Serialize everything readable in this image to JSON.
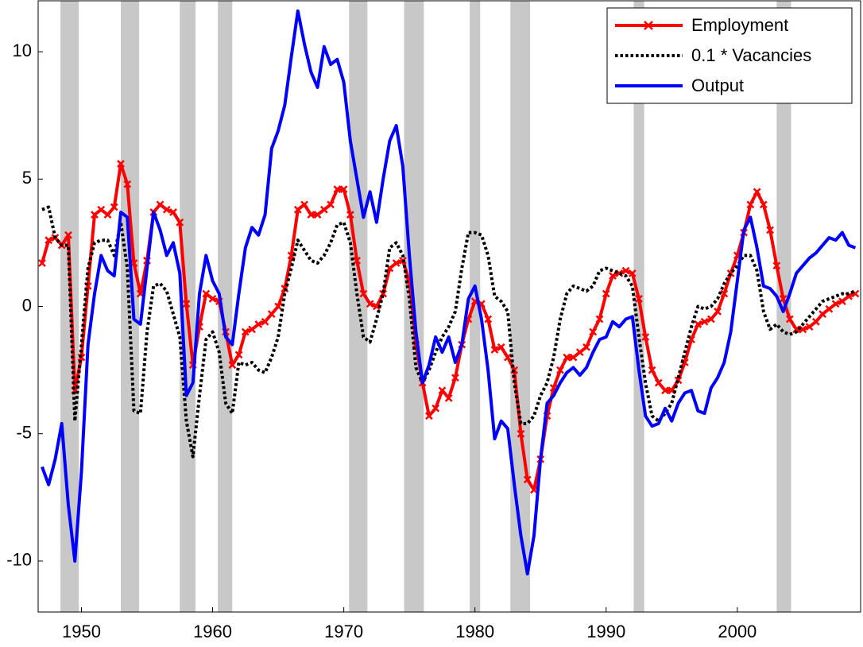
{
  "chart_data": {
    "type": "line",
    "x": [
      1947.0,
      1947.5,
      1948.0,
      1948.5,
      1949.0,
      1949.5,
      1950.0,
      1950.5,
      1951.0,
      1951.5,
      1952.0,
      1952.5,
      1953.0,
      1953.5,
      1954.0,
      1954.5,
      1955.0,
      1955.5,
      1956.0,
      1956.5,
      1957.0,
      1957.5,
      1958.0,
      1958.5,
      1959.0,
      1959.5,
      1960.0,
      1960.5,
      1961.0,
      1961.5,
      1962.0,
      1962.5,
      1963.0,
      1963.5,
      1964.0,
      1964.5,
      1965.0,
      1965.5,
      1966.0,
      1966.5,
      1967.0,
      1967.5,
      1968.0,
      1968.5,
      1969.0,
      1969.5,
      1970.0,
      1970.5,
      1971.0,
      1971.5,
      1972.0,
      1972.5,
      1973.0,
      1973.5,
      1974.0,
      1974.5,
      1975.0,
      1975.5,
      1976.0,
      1976.5,
      1977.0,
      1977.5,
      1978.0,
      1978.5,
      1979.0,
      1979.5,
      1980.0,
      1980.5,
      1981.0,
      1981.5,
      1982.0,
      1982.5,
      1983.0,
      1983.5,
      1984.0,
      1984.5,
      1985.0,
      1985.5,
      1986.0,
      1986.5,
      1987.0,
      1987.5,
      1988.0,
      1988.5,
      1989.0,
      1989.5,
      1990.0,
      1990.5,
      1991.0,
      1991.5,
      1992.0,
      1992.5,
      1993.0,
      1993.5,
      1994.0,
      1994.5,
      1995.0,
      1995.5,
      1996.0,
      1996.5,
      1997.0,
      1997.5,
      1998.0,
      1998.5,
      1999.0,
      1999.5,
      2000.0,
      2000.5,
      2001.0,
      2001.5,
      2002.0,
      2002.5,
      2003.0,
      2003.5,
      2004.0,
      2004.5,
      2005.0,
      2005.5,
      2006.0,
      2006.5,
      2007.0,
      2007.5,
      2008.0,
      2008.5,
      2009.0
    ],
    "series": [
      {
        "name": "Employment",
        "color": "#ff0000",
        "marker": "x",
        "dash": "solid",
        "values": [
          1.7,
          2.6,
          2.7,
          2.4,
          2.8,
          -3.3,
          -2.0,
          0.8,
          3.6,
          3.8,
          3.6,
          3.9,
          5.6,
          4.8,
          1.7,
          0.5,
          1.8,
          3.7,
          4.0,
          3.8,
          3.7,
          3.3,
          0.1,
          -2.3,
          -0.8,
          0.5,
          0.3,
          0.2,
          -1.0,
          -2.3,
          -1.9,
          -1.0,
          -0.9,
          -0.7,
          -0.6,
          -0.3,
          0.0,
          0.7,
          2.0,
          3.8,
          4.0,
          3.6,
          3.6,
          3.8,
          4.0,
          4.6,
          4.6,
          3.6,
          1.8,
          0.5,
          0.1,
          0.0,
          0.5,
          1.5,
          1.7,
          1.8,
          1.0,
          -1.5,
          -3.0,
          -4.3,
          -4.0,
          -3.3,
          -3.6,
          -2.8,
          -1.5,
          -0.5,
          0.2,
          0.1,
          -0.5,
          -1.7,
          -1.6,
          -2.0,
          -2.5,
          -5.0,
          -6.8,
          -7.2,
          -6.0,
          -4.3,
          -3.2,
          -2.5,
          -2.0,
          -2.0,
          -1.8,
          -1.6,
          -1.0,
          -0.5,
          0.5,
          1.2,
          1.3,
          1.4,
          1.3,
          0.3,
          -1.2,
          -2.5,
          -3.0,
          -3.3,
          -3.3,
          -2.9,
          -2.2,
          -1.3,
          -0.7,
          -0.6,
          -0.5,
          -0.2,
          0.5,
          1.3,
          2.0,
          2.9,
          4.0,
          4.5,
          4.0,
          3.0,
          1.6,
          0.3,
          -0.5,
          -0.9,
          -0.9,
          -0.8,
          -0.6,
          -0.3,
          -0.1,
          0.1,
          0.2,
          0.4,
          0.5
        ]
      },
      {
        "name": "0.1 * Vacancies",
        "color": "#000000",
        "marker": "none",
        "dash": "dotted",
        "values": [
          3.8,
          3.9,
          2.7,
          2.4,
          2.4,
          -4.5,
          -1.5,
          1.5,
          2.5,
          2.6,
          2.6,
          2.0,
          3.3,
          1.5,
          -4.1,
          -4.2,
          -1.0,
          0.8,
          0.9,
          0.6,
          -0.3,
          -1.2,
          -4.5,
          -5.9,
          -3.5,
          -1.3,
          -1.0,
          -1.8,
          -3.8,
          -4.2,
          -2.2,
          -2.3,
          -2.2,
          -2.5,
          -2.6,
          -2.0,
          -1.2,
          0.5,
          1.5,
          2.6,
          2.2,
          1.8,
          1.7,
          2.0,
          2.5,
          3.2,
          3.3,
          2.5,
          0.5,
          -1.2,
          -1.4,
          -0.5,
          0.5,
          2.3,
          2.5,
          2.0,
          0.3,
          -2.4,
          -3.0,
          -2.5,
          -1.8,
          -1.2,
          -0.8,
          -0.2,
          1.5,
          2.9,
          2.9,
          2.8,
          2.0,
          0.4,
          0.2,
          -0.2,
          -3.0,
          -4.6,
          -4.6,
          -4.3,
          -3.5,
          -3.0,
          -2.0,
          -0.5,
          0.5,
          0.8,
          0.7,
          0.6,
          0.8,
          1.4,
          1.5,
          1.4,
          1.3,
          1.2,
          0.8,
          -1.2,
          -3.0,
          -4.3,
          -4.5,
          -4.2,
          -3.8,
          -2.8,
          -1.8,
          -0.8,
          0.0,
          -0.1,
          0.0,
          0.3,
          0.9,
          1.3,
          1.6,
          2.0,
          2.0,
          1.4,
          -0.2,
          -0.9,
          -0.7,
          -1.0,
          -1.1,
          -1.0,
          -0.7,
          -0.4,
          -0.1,
          0.2,
          0.3,
          0.4,
          0.5,
          0.5,
          0.6
        ]
      },
      {
        "name": "Output",
        "color": "#0000ff",
        "marker": "none",
        "dash": "solid",
        "values": [
          -6.3,
          -7.0,
          -6.0,
          -4.6,
          -7.8,
          -10.0,
          -6.5,
          -1.5,
          0.5,
          2.0,
          1.4,
          1.2,
          3.7,
          3.5,
          -0.5,
          -0.7,
          1.5,
          3.7,
          3.0,
          2.0,
          2.5,
          1.3,
          -3.5,
          -3.0,
          0.5,
          2.0,
          1.0,
          0.5,
          -1.2,
          -1.5,
          0.5,
          2.3,
          3.1,
          2.8,
          3.6,
          6.2,
          6.9,
          7.9,
          9.8,
          11.6,
          10.3,
          9.2,
          8.6,
          10.2,
          9.5,
          9.7,
          8.8,
          6.5,
          5.0,
          3.5,
          4.5,
          3.3,
          5.0,
          6.5,
          7.1,
          5.5,
          2.0,
          -1.0,
          -3.0,
          -2.3,
          -1.2,
          -1.8,
          -1.2,
          -2.2,
          -1.5,
          0.3,
          0.8,
          -0.5,
          -2.5,
          -5.2,
          -4.5,
          -4.8,
          -7.0,
          -9.0,
          -10.5,
          -9.0,
          -6.0,
          -3.8,
          -3.5,
          -3.0,
          -2.6,
          -2.4,
          -2.7,
          -2.4,
          -1.8,
          -1.3,
          -1.2,
          -0.6,
          -0.8,
          -0.5,
          -0.4,
          -2.5,
          -4.3,
          -4.7,
          -4.6,
          -4.0,
          -4.5,
          -3.8,
          -3.4,
          -3.3,
          -4.1,
          -4.2,
          -3.2,
          -2.8,
          -2.2,
          -1.0,
          1.0,
          3.0,
          3.5,
          2.3,
          0.8,
          0.7,
          0.4,
          -0.2,
          0.5,
          1.3,
          1.6,
          1.9,
          2.1,
          2.4,
          2.7,
          2.6,
          2.9,
          2.4,
          2.3
        ]
      }
    ],
    "shaded_periods": [
      [
        1948.4,
        1949.8
      ],
      [
        1953.0,
        1954.4
      ],
      [
        1957.5,
        1958.7
      ],
      [
        1960.4,
        1961.5
      ],
      [
        1970.4,
        1971.8
      ],
      [
        1974.6,
        1976.1
      ],
      [
        1979.6,
        1980.4
      ],
      [
        1982.7,
        1984.2
      ],
      [
        1992.1,
        1992.9
      ],
      [
        2003.0,
        2004.1
      ]
    ],
    "shade_color": "#c8c8c8",
    "xlim": [
      1946.7,
      2009.4
    ],
    "xticks": [
      1950,
      1960,
      1970,
      1980,
      1990,
      2000
    ],
    "ylim": [
      -12,
      12
    ],
    "yticks": [
      -10,
      -5,
      0,
      5,
      10
    ],
    "grid": false,
    "legend": "upper right"
  }
}
